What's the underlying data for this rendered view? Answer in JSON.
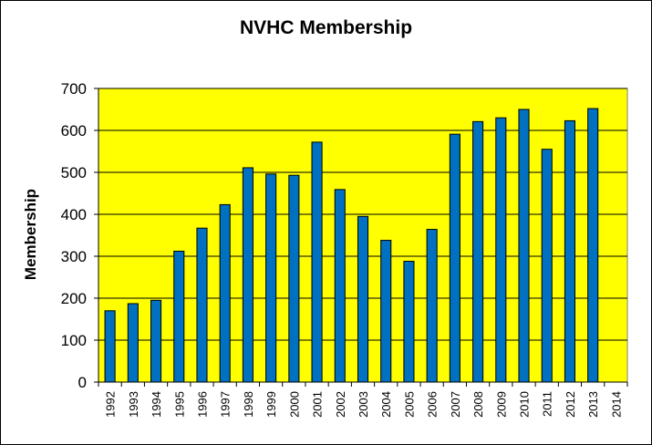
{
  "chart_data": {
    "type": "bar",
    "title": "NVHC Membership",
    "xlabel": "",
    "ylabel": "Membership",
    "ylim": [
      0,
      700
    ],
    "yticks": [
      0,
      100,
      200,
      300,
      400,
      500,
      600,
      700
    ],
    "categories": [
      "1992",
      "1993",
      "1994",
      "1995",
      "1996",
      "1997",
      "1998",
      "1999",
      "2000",
      "2001",
      "2002",
      "2003",
      "2004",
      "2005",
      "2006",
      "2007",
      "2008",
      "2009",
      "2010",
      "2011",
      "2012",
      "2013",
      "2014"
    ],
    "values": [
      170,
      187,
      195,
      312,
      367,
      423,
      511,
      496,
      493,
      572,
      459,
      395,
      338,
      288,
      364,
      591,
      621,
      630,
      650,
      555,
      623,
      652,
      null
    ],
    "grid": true,
    "legend": "none"
  },
  "colors": {
    "plot_background": "#ffff00",
    "bar_fill": "#0070c0",
    "bar_stroke": "#000000",
    "gridline": "#000000"
  }
}
